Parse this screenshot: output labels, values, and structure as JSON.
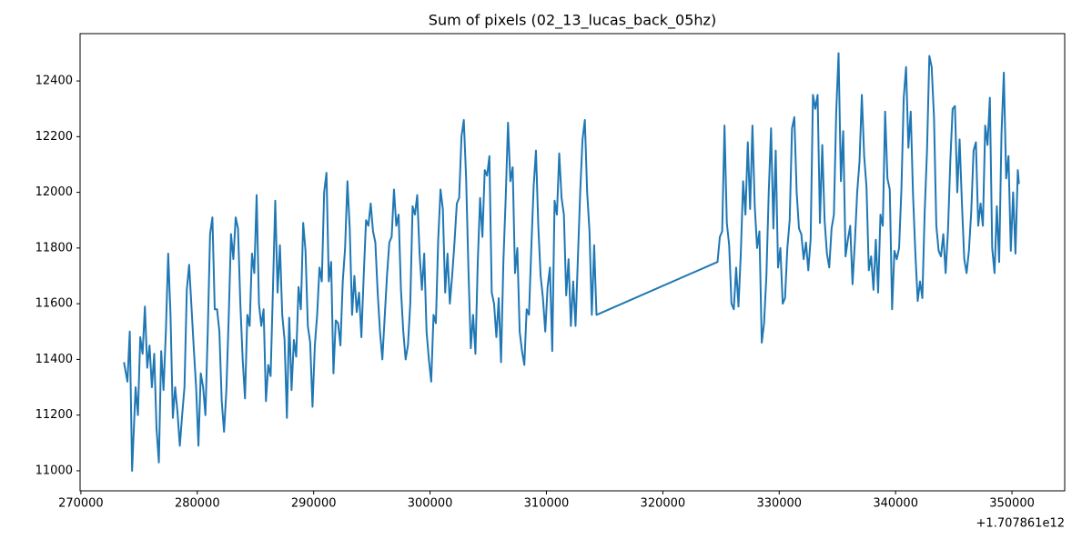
{
  "chart_data": {
    "type": "line",
    "title": "Sum of pixels (02_13_lucas_back_05hz)",
    "offset_label": "+1.707861e12",
    "color": "#1f77b4",
    "x": [
      273700,
      274000,
      274200,
      274400,
      274700,
      274900,
      275100,
      275300,
      275500,
      275700,
      275900,
      276100,
      276300,
      276500,
      276700,
      276900,
      277100,
      277300,
      277500,
      277700,
      277900,
      278100,
      278300,
      278500,
      278700,
      278900,
      279100,
      279300,
      279500,
      279700,
      279900,
      280100,
      280300,
      280500,
      280700,
      280900,
      281100,
      281300,
      281500,
      281700,
      281900,
      282100,
      282300,
      282500,
      282700,
      282900,
      283100,
      283300,
      283500,
      283700,
      283900,
      284100,
      284300,
      284500,
      284700,
      284900,
      285100,
      285300,
      285500,
      285700,
      285900,
      286100,
      286300,
      286500,
      286700,
      286900,
      287100,
      287300,
      287500,
      287700,
      287900,
      288100,
      288300,
      288500,
      288700,
      288900,
      289100,
      289300,
      289500,
      289700,
      289900,
      290100,
      290300,
      290500,
      290700,
      290900,
      291100,
      291300,
      291500,
      291700,
      291900,
      292100,
      292300,
      292500,
      292700,
      292900,
      293100,
      293300,
      293500,
      293700,
      293900,
      294100,
      294300,
      294500,
      294700,
      294900,
      295100,
      295300,
      295500,
      295700,
      295900,
      296100,
      296300,
      296500,
      296700,
      296900,
      297100,
      297300,
      297500,
      297700,
      297900,
      298100,
      298300,
      298500,
      298700,
      298900,
      299100,
      299300,
      299500,
      299700,
      299900,
      300100,
      300300,
      300500,
      300700,
      300900,
      301100,
      301300,
      301500,
      301700,
      301900,
      302100,
      302300,
      302500,
      302700,
      302900,
      303100,
      303300,
      303500,
      303700,
      303900,
      304100,
      304300,
      304500,
      304700,
      304900,
      305100,
      305300,
      305500,
      305700,
      305900,
      306100,
      306300,
      306500,
      306700,
      306900,
      307100,
      307300,
      307500,
      307700,
      307900,
      308100,
      308300,
      308500,
      308700,
      308900,
      309100,
      309300,
      309500,
      309700,
      309900,
      310100,
      310300,
      310500,
      310700,
      310900,
      311100,
      311300,
      311500,
      311700,
      311900,
      312100,
      312300,
      312500,
      312700,
      312900,
      313100,
      313300,
      313500,
      313700,
      313900,
      314100,
      314300,
      324700,
      324900,
      325100,
      325300,
      325500,
      325700,
      325900,
      326100,
      326300,
      326500,
      326700,
      326900,
      327100,
      327300,
      327500,
      327700,
      327900,
      328100,
      328300,
      328500,
      328700,
      328900,
      329100,
      329300,
      329500,
      329700,
      329900,
      330100,
      330300,
      330500,
      330700,
      330900,
      331100,
      331300,
      331500,
      331700,
      331900,
      332100,
      332300,
      332500,
      332700,
      332900,
      333100,
      333300,
      333500,
      333700,
      333900,
      334100,
      334300,
      334500,
      334700,
      334900,
      335100,
      335300,
      335500,
      335700,
      335900,
      336100,
      336300,
      336500,
      336700,
      336900,
      337100,
      337300,
      337500,
      337700,
      337900,
      338100,
      338300,
      338500,
      338700,
      338900,
      339100,
      339300,
      339500,
      339700,
      339900,
      340100,
      340300,
      340500,
      340700,
      340900,
      341100,
      341300,
      341500,
      341700,
      341900,
      342100,
      342300,
      342500,
      342700,
      342900,
      343100,
      343300,
      343500,
      343700,
      343900,
      344100,
      344300,
      344500,
      344700,
      344900,
      345100,
      345300,
      345500,
      345700,
      345900,
      346100,
      346300,
      346500,
      346700,
      346900,
      347100,
      347300,
      347500,
      347700,
      347900,
      348100,
      348300,
      348500,
      348700,
      348900,
      349100,
      349300,
      349500,
      349700,
      349900,
      350100,
      350300,
      350500,
      350600
    ],
    "values": [
      11390,
      11320,
      11500,
      11000,
      11300,
      11200,
      11480,
      11420,
      11590,
      11370,
      11450,
      11300,
      11420,
      11150,
      11030,
      11430,
      11290,
      11500,
      11780,
      11560,
      11190,
      11300,
      11210,
      11090,
      11200,
      11300,
      11650,
      11740,
      11590,
      11440,
      11300,
      11090,
      11350,
      11300,
      11200,
      11500,
      11850,
      11910,
      11580,
      11580,
      11500,
      11250,
      11140,
      11290,
      11550,
      11850,
      11760,
      11910,
      11870,
      11600,
      11400,
      11260,
      11560,
      11520,
      11780,
      11710,
      11990,
      11600,
      11520,
      11580,
      11250,
      11380,
      11340,
      11650,
      11970,
      11640,
      11810,
      11560,
      11470,
      11190,
      11550,
      11290,
      11470,
      11410,
      11660,
      11580,
      11890,
      11790,
      11520,
      11460,
      11230,
      11450,
      11560,
      11730,
      11680,
      12000,
      12070,
      11680,
      11750,
      11350,
      11540,
      11530,
      11450,
      11680,
      11800,
      12040,
      11870,
      11560,
      11700,
      11570,
      11640,
      11480,
      11700,
      11900,
      11880,
      11960,
      11860,
      11820,
      11640,
      11500,
      11400,
      11550,
      11700,
      11820,
      11840,
      12010,
      11880,
      11920,
      11650,
      11500,
      11400,
      11450,
      11600,
      11950,
      11920,
      11990,
      11780,
      11650,
      11780,
      11500,
      11400,
      11320,
      11560,
      11530,
      11830,
      12010,
      11940,
      11640,
      11780,
      11600,
      11700,
      11820,
      11960,
      11980,
      12200,
      12260,
      12050,
      11720,
      11440,
      11560,
      11420,
      11750,
      11980,
      11840,
      12080,
      12060,
      12130,
      11640,
      11600,
      11480,
      11620,
      11390,
      11750,
      11980,
      12250,
      12040,
      12090,
      11710,
      11800,
      11500,
      11430,
      11380,
      11580,
      11560,
      11800,
      12020,
      12150,
      11880,
      11700,
      11620,
      11500,
      11660,
      11730,
      11430,
      11970,
      11920,
      12140,
      11980,
      11920,
      11630,
      11760,
      11520,
      11680,
      11520,
      11760,
      12000,
      12190,
      12260,
      12000,
      11860,
      11560,
      11810,
      11560,
      11750,
      11840,
      11860,
      12240,
      11890,
      11810,
      11600,
      11580,
      11730,
      11590,
      11780,
      12040,
      11920,
      12180,
      11940,
      12240,
      11950,
      11800,
      11860,
      11460,
      11530,
      11700,
      12000,
      12230,
      11870,
      12150,
      11730,
      11800,
      11600,
      11620,
      11800,
      11900,
      12230,
      12270,
      12000,
      11870,
      11850,
      11760,
      11820,
      11720,
      11830,
      12350,
      12300,
      12350,
      11890,
      12170,
      11900,
      11780,
      11730,
      11870,
      11920,
      12290,
      12500,
      12040,
      12220,
      11770,
      11830,
      11880,
      11670,
      11820,
      12000,
      12110,
      12350,
      12130,
      12020,
      11720,
      11770,
      11650,
      11830,
      11640,
      11920,
      11880,
      12290,
      12050,
      12010,
      11580,
      11790,
      11760,
      11800,
      12010,
      12340,
      12450,
      12160,
      12290,
      11990,
      11780,
      11610,
      11680,
      11620,
      11930,
      12150,
      12490,
      12450,
      12270,
      11880,
      11790,
      11770,
      11850,
      11710,
      11860,
      12110,
      12300,
      12310,
      12000,
      12190,
      11960,
      11760,
      11710,
      11790,
      11930,
      12150,
      12180,
      11880,
      11960,
      11880,
      12240,
      12170,
      12340,
      11800,
      11710,
      11950,
      11750,
      12210,
      12430,
      12050,
      12130,
      11790,
      12000,
      11780,
      12080,
      12030
    ],
    "xlim": [
      269930,
      354530
    ],
    "ylim": [
      10928,
      12570
    ],
    "xticks": [
      270000,
      280000,
      290000,
      300000,
      310000,
      320000,
      330000,
      340000,
      350000
    ],
    "yticks": [
      11000,
      11200,
      11400,
      11600,
      11800,
      12000,
      12200,
      12400
    ]
  }
}
